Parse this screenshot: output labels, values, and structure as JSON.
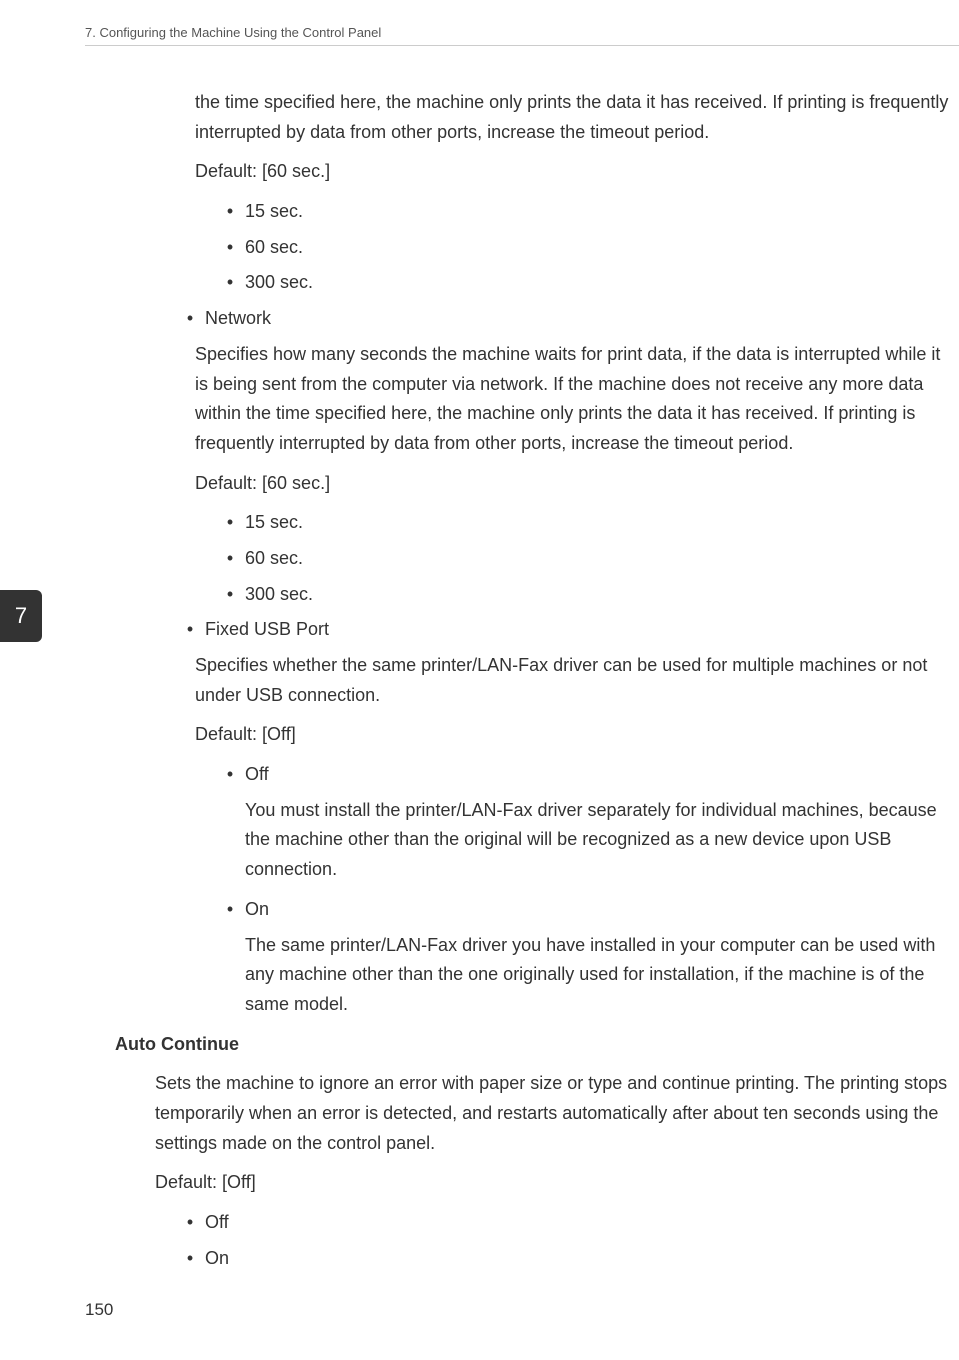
{
  "header": {
    "title": "7. Configuring the Machine Using the Control Panel"
  },
  "chapterTab": "7",
  "body": {
    "introPara": "the time specified here, the machine only prints the data it has received. If printing is frequently interrupted by data from other ports, increase the timeout period.",
    "default60a": "Default: [60 sec.]",
    "opt15a": "15 sec.",
    "opt60a": "60 sec.",
    "opt300a": "300 sec.",
    "networkLabel": "Network",
    "networkDesc": "Specifies how many seconds the machine waits for print data, if the data is interrupted while it is being sent from the computer via network. If the machine does not receive any more data within the time specified here, the machine only prints the data it has received. If printing is frequently interrupted by data from other ports, increase the timeout period.",
    "default60b": "Default: [60 sec.]",
    "opt15b": "15 sec.",
    "opt60b": "60 sec.",
    "opt300b": "300 sec.",
    "fixedUsbLabel": "Fixed USB Port",
    "fixedUsbDesc": "Specifies whether the same printer/LAN-Fax driver can be used for multiple machines or not under USB connection.",
    "defaultOffA": "Default: [Off]",
    "offLabelA": "Off",
    "offDescA": "You must install the printer/LAN-Fax driver separately for individual machines, because the machine other than the original will be recognized as a new device upon USB connection.",
    "onLabelA": "On",
    "onDescA": "The same printer/LAN-Fax driver you have installed in your computer can be used with any machine other than the one originally used for installation, if the machine is of the same model.",
    "autoContinueHeading": "Auto Continue",
    "autoContinueDesc": "Sets the machine to ignore an error with paper size or type and continue printing. The printing stops temporarily when an error is detected, and restarts automatically after about ten seconds using the settings made on the control panel.",
    "defaultOffB": "Default: [Off]",
    "offLabelB": "Off",
    "onLabelB": "On"
  },
  "pageNumber": "150"
}
